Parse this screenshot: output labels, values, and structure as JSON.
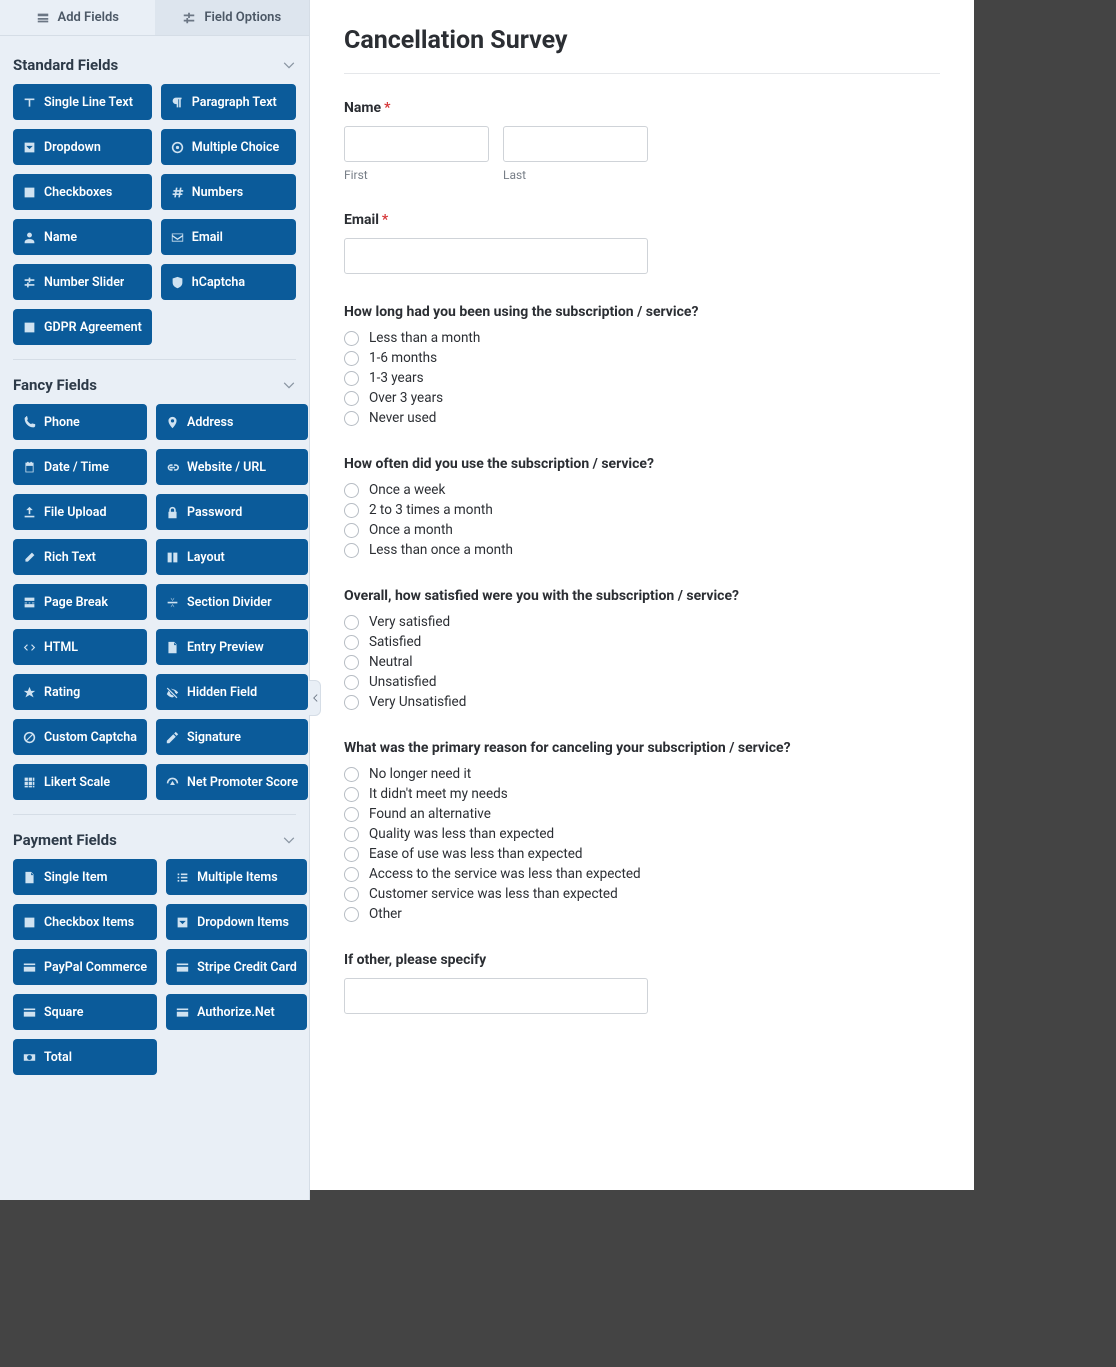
{
  "tabs": {
    "add_fields": "Add Fields",
    "field_options": "Field Options"
  },
  "sections": {
    "standard": {
      "title": "Standard Fields",
      "fields": [
        {
          "label": "Single Line Text",
          "icon": "text"
        },
        {
          "label": "Paragraph Text",
          "icon": "paragraph"
        },
        {
          "label": "Dropdown",
          "icon": "caret-sq"
        },
        {
          "label": "Multiple Choice",
          "icon": "dot-circle"
        },
        {
          "label": "Checkboxes",
          "icon": "check-sq"
        },
        {
          "label": "Numbers",
          "icon": "hash"
        },
        {
          "label": "Name",
          "icon": "user"
        },
        {
          "label": "Email",
          "icon": "envelope"
        },
        {
          "label": "Number Slider",
          "icon": "sliders"
        },
        {
          "label": "hCaptcha",
          "icon": "shield"
        },
        {
          "label": "GDPR Agreement",
          "icon": "check-sq"
        }
      ]
    },
    "fancy": {
      "title": "Fancy Fields",
      "fields": [
        {
          "label": "Phone",
          "icon": "phone"
        },
        {
          "label": "Address",
          "icon": "map-pin"
        },
        {
          "label": "Date / Time",
          "icon": "calendar"
        },
        {
          "label": "Website / URL",
          "icon": "link"
        },
        {
          "label": "File Upload",
          "icon": "upload"
        },
        {
          "label": "Password",
          "icon": "lock"
        },
        {
          "label": "Rich Text",
          "icon": "edit"
        },
        {
          "label": "Layout",
          "icon": "columns"
        },
        {
          "label": "Page Break",
          "icon": "pagebreak"
        },
        {
          "label": "Section Divider",
          "icon": "divider"
        },
        {
          "label": "HTML",
          "icon": "code"
        },
        {
          "label": "Entry Preview",
          "icon": "file"
        },
        {
          "label": "Rating",
          "icon": "star"
        },
        {
          "label": "Hidden Field",
          "icon": "eye-off"
        },
        {
          "label": "Custom Captcha",
          "icon": "ban"
        },
        {
          "label": "Signature",
          "icon": "pen"
        },
        {
          "label": "Likert Scale",
          "icon": "grid"
        },
        {
          "label": "Net Promoter Score",
          "icon": "gauge"
        }
      ]
    },
    "payment": {
      "title": "Payment Fields",
      "fields": [
        {
          "label": "Single Item",
          "icon": "file"
        },
        {
          "label": "Multiple Items",
          "icon": "list"
        },
        {
          "label": "Checkbox Items",
          "icon": "check-sq"
        },
        {
          "label": "Dropdown Items",
          "icon": "caret-sq"
        },
        {
          "label": "PayPal Commerce",
          "icon": "card"
        },
        {
          "label": "Stripe Credit Card",
          "icon": "card"
        },
        {
          "label": "Square",
          "icon": "card"
        },
        {
          "label": "Authorize.Net",
          "icon": "card"
        },
        {
          "label": "Total",
          "icon": "money"
        }
      ]
    }
  },
  "form": {
    "title": "Cancellation Survey",
    "name": {
      "label": "Name",
      "first_sub": "First",
      "last_sub": "Last"
    },
    "email": {
      "label": "Email"
    },
    "q1": {
      "label": "How long had you been using the subscription / service?",
      "options": [
        "Less than a month",
        "1-6 months",
        "1-3 years",
        "Over 3 years",
        "Never used"
      ]
    },
    "q2": {
      "label": "How often did you use the subscription / service?",
      "options": [
        "Once a week",
        "2 to 3 times a month",
        "Once a month",
        "Less than once a month"
      ]
    },
    "q3": {
      "label": "Overall, how satisfied were you with the subscription / service?",
      "options": [
        "Very satisfied",
        "Satisfied",
        "Neutral",
        "Unsatisfied",
        "Very Unsatisfied"
      ]
    },
    "q4": {
      "label": "What was the primary reason for canceling your subscription / service?",
      "options": [
        "No longer need it",
        "It didn't meet my needs",
        "Found an alternative",
        "Quality was less than expected",
        "Ease of use was less than expected",
        "Access to the service was less than expected",
        "Customer service was less than expected",
        "Other"
      ]
    },
    "q5": {
      "label": "If other, please specify"
    }
  },
  "colors": {
    "button_bg": "#0b5b9a",
    "sidebar_bg": "#e9eff6"
  }
}
